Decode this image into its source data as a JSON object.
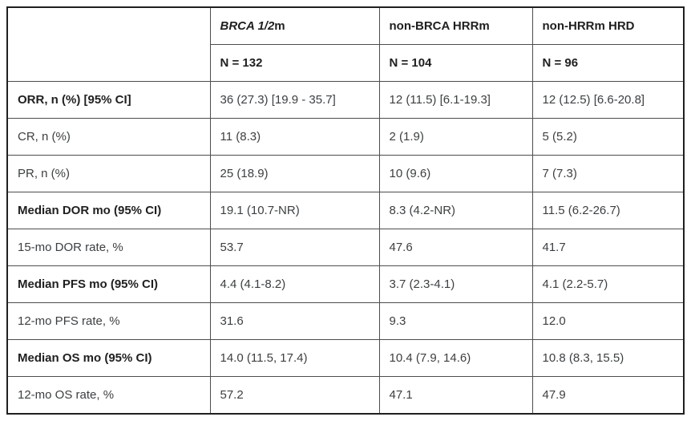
{
  "chart_data": {
    "type": "table",
    "corner_label": "",
    "column_groups": [
      {
        "name": "BRCA 1/2m",
        "name_italic_part": "BRCA 1/2",
        "name_plain_part": "m",
        "n_label": "N = 132"
      },
      {
        "name": "non-BRCA HRRm",
        "n_label": "N = 104"
      },
      {
        "name": "non-HRRm HRD",
        "n_label": "N = 96"
      }
    ],
    "rows": [
      {
        "label": "ORR, n (%) [95% CI]",
        "emphasis": true,
        "values": [
          "36 (27.3) [19.9 - 35.7]",
          "12 (11.5) [6.1-19.3]",
          "12 (12.5) [6.6-20.8]"
        ]
      },
      {
        "label": "CR, n (%)",
        "emphasis": false,
        "values": [
          "11 (8.3)",
          "2 (1.9)",
          "5 (5.2)"
        ]
      },
      {
        "label": "PR, n (%)",
        "emphasis": false,
        "values": [
          "25 (18.9)",
          "10 (9.6)",
          "7 (7.3)"
        ]
      },
      {
        "label": "Median DOR mo (95% CI)",
        "emphasis": true,
        "values": [
          "19.1 (10.7-NR)",
          "8.3 (4.2-NR)",
          "11.5 (6.2-26.7)"
        ]
      },
      {
        "label": "15-mo DOR rate, %",
        "emphasis": false,
        "values": [
          "53.7",
          "47.6",
          "41.7"
        ]
      },
      {
        "label": "Median PFS mo (95% CI)",
        "emphasis": true,
        "values": [
          "4.4 (4.1-8.2)",
          "3.7 (2.3-4.1)",
          "4.1 (2.2-5.7)"
        ]
      },
      {
        "label": "12-mo PFS rate, %",
        "emphasis": false,
        "values": [
          "31.6",
          "9.3",
          "12.0"
        ]
      },
      {
        "label": "Median OS mo (95% CI)",
        "emphasis": true,
        "values": [
          "14.0 (11.5, 17.4)",
          "10.4 (7.9, 14.6)",
          "10.8 (8.3, 15.5)"
        ]
      },
      {
        "label": "12-mo OS rate, %",
        "emphasis": false,
        "values": [
          "57.2",
          "47.1",
          "47.9"
        ]
      }
    ]
  },
  "colors": {
    "outer_border": "#1f1f1f",
    "inner_border": "#4d4d4d",
    "text": "#3c4043",
    "text_emphasis": "#1f1f1f",
    "background": "#ffffff"
  }
}
